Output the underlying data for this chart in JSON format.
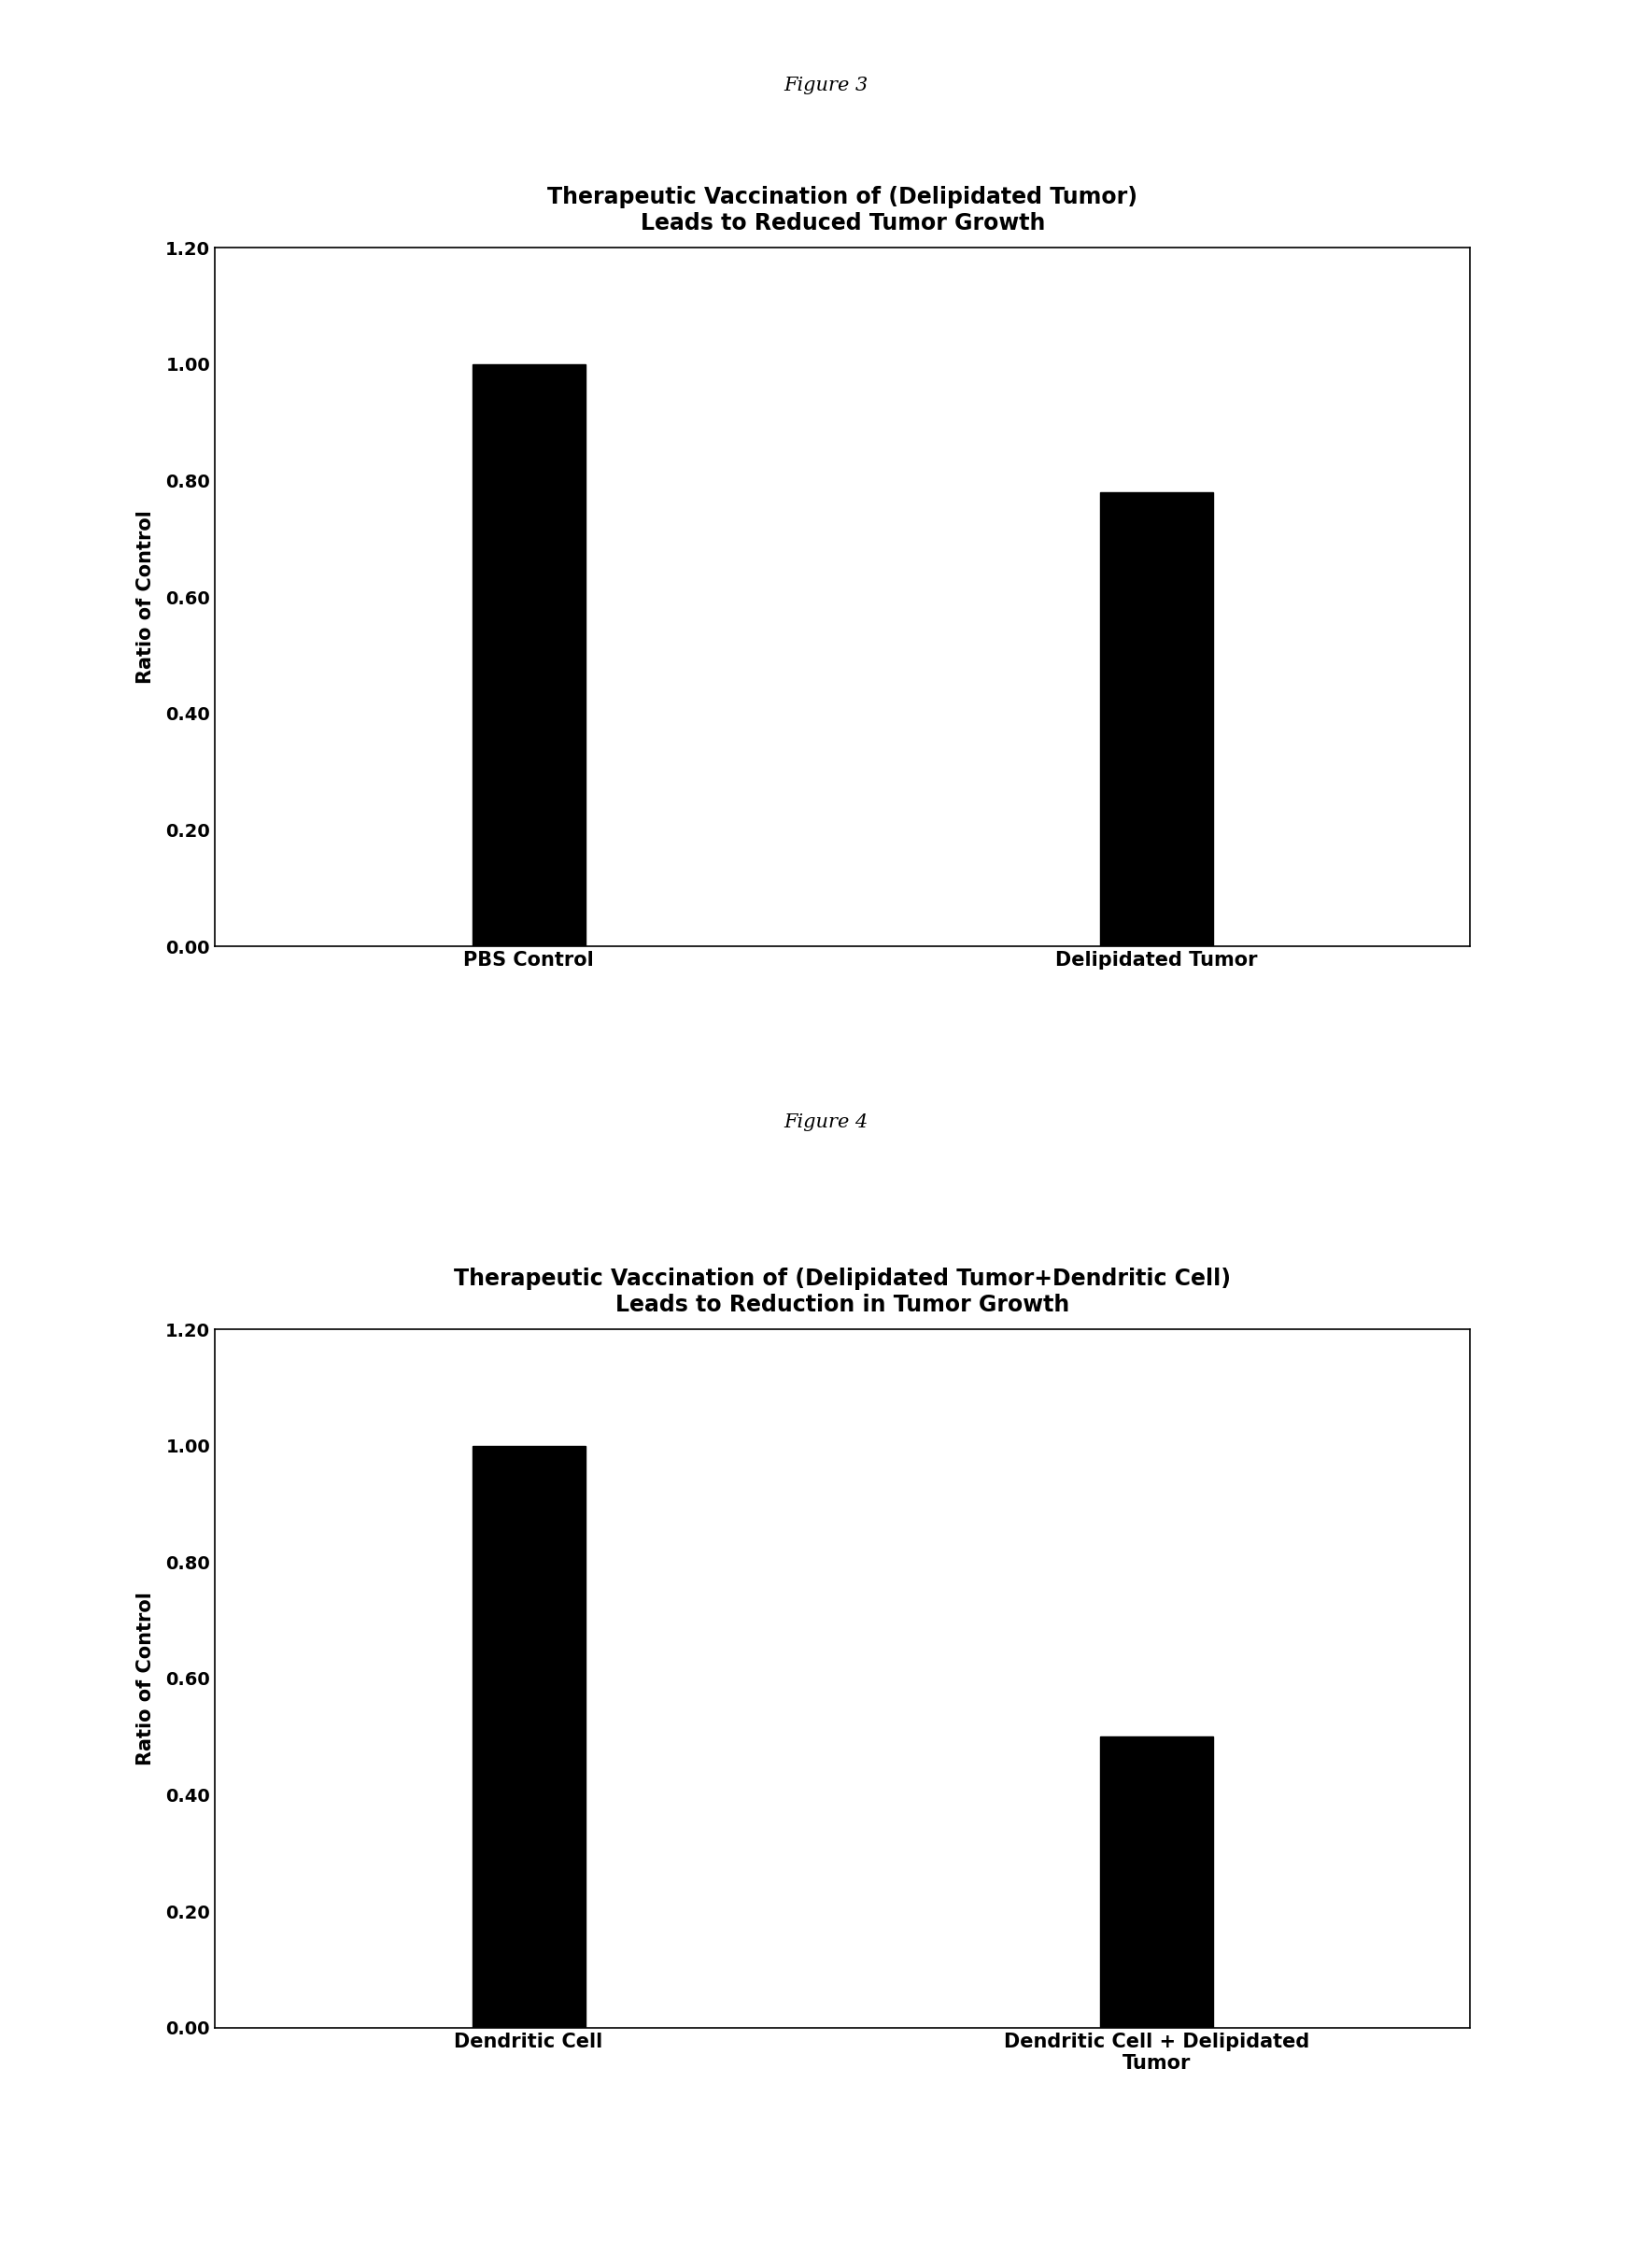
{
  "fig3": {
    "title_line1": "Therapeutic Vaccination of (Delipidated Tumor)",
    "title_line2": "Leads to Reduced Tumor Growth",
    "categories": [
      "PBS Control",
      "Delipidated Tumor"
    ],
    "values": [
      1.0,
      0.78
    ],
    "bar_color": "#000000",
    "ylabel": "Ratio of Control",
    "ylim": [
      0,
      1.2
    ],
    "yticks": [
      0.0,
      0.2,
      0.4,
      0.6,
      0.8,
      1.0,
      1.2
    ],
    "figure_label": "Figure 3"
  },
  "fig4": {
    "title_line1": "Therapeutic Vaccination of (Delipidated Tumor+Dendritic Cell)",
    "title_line2": "Leads to Reduction in Tumor Growth",
    "categories": [
      "Dendritic Cell",
      "Dendritic Cell + Delipidated\nTumor"
    ],
    "values": [
      1.0,
      0.5
    ],
    "bar_color": "#000000",
    "ylabel": "Ratio of Control",
    "ylim": [
      0,
      1.2
    ],
    "yticks": [
      0.0,
      0.2,
      0.4,
      0.6,
      0.8,
      1.0,
      1.2
    ],
    "figure_label": "Figure 4"
  },
  "background_color": "#ffffff",
  "bar_width": 0.18,
  "title_fontsize": 17,
  "label_fontsize": 15,
  "tick_fontsize": 14,
  "figure_label_fontsize": 15,
  "xlabel_fontsize": 15
}
